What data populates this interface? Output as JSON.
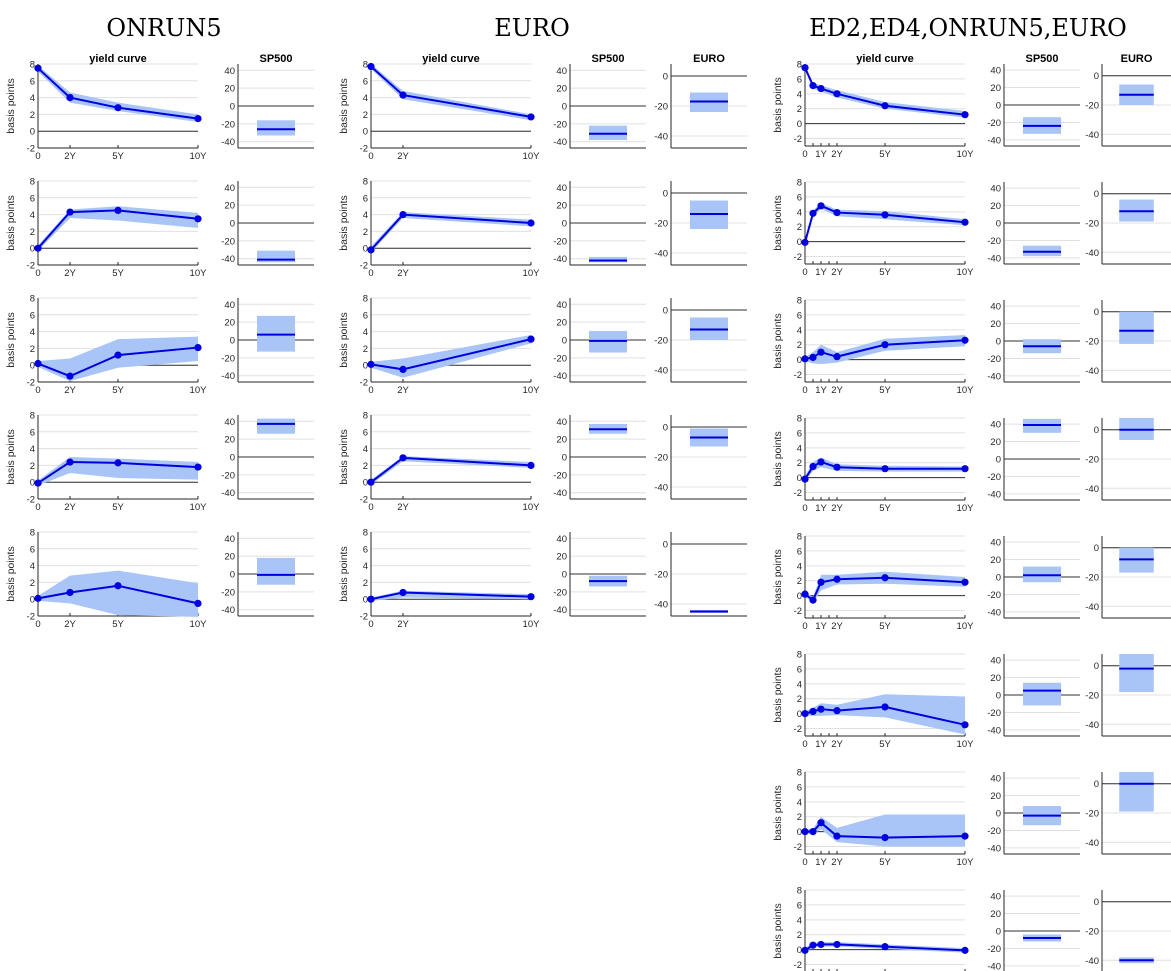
{
  "figure": {
    "group_titles": [
      "ONRUN5",
      "EURO",
      "ED2,ED4,ONRUN5,EURO"
    ]
  },
  "colors": {
    "line": "#0000e0",
    "band": "#a9c4f6",
    "grid": "#e0e0e0",
    "zero": "#303030",
    "axis": "#262626"
  },
  "chart_data": [
    {
      "group": "ONRUN5",
      "rows": [
        {
          "yield_curve": {
            "title": "yield curve",
            "ylabel": "basis points",
            "x": [
              0,
              2,
              5,
              10
            ],
            "y": [
              7.5,
              4.0,
              2.8,
              1.5
            ],
            "band_low": [
              7.1,
              3.4,
              2.4,
              1.1
            ],
            "band_high": [
              7.8,
              4.6,
              3.4,
              2.0
            ]
          },
          "boxes": [
            {
              "title": "SP500",
              "value": -26,
              "low": -33,
              "high": -16
            }
          ]
        },
        {
          "yield_curve": {
            "ylabel": "basis points",
            "x": [
              0,
              2,
              5,
              10
            ],
            "y": [
              0.0,
              4.3,
              4.5,
              3.5
            ],
            "band_low": [
              -0.3,
              3.6,
              3.3,
              2.4
            ],
            "band_high": [
              0.3,
              4.6,
              5.0,
              4.2
            ]
          },
          "boxes": [
            {
              "value": -41,
              "low": -44,
              "high": -31
            }
          ]
        },
        {
          "yield_curve": {
            "ylabel": "basis points",
            "x": [
              0,
              2,
              5,
              10
            ],
            "y": [
              0.2,
              -1.3,
              1.2,
              2.1
            ],
            "band_low": [
              -0.2,
              -1.9,
              -0.3,
              0.5
            ],
            "band_high": [
              0.5,
              0.8,
              3.1,
              3.4
            ]
          },
          "boxes": [
            {
              "value": 6,
              "low": -13,
              "high": 27
            }
          ]
        },
        {
          "yield_curve": {
            "ylabel": "basis points",
            "x": [
              0,
              2,
              5,
              10
            ],
            "y": [
              -0.1,
              2.4,
              2.3,
              1.8
            ],
            "band_low": [
              -0.4,
              1.1,
              0.5,
              0.3
            ],
            "band_high": [
              0.2,
              3.0,
              2.8,
              2.4
            ]
          },
          "boxes": [
            {
              "value": 37,
              "low": 26,
              "high": 43
            }
          ]
        },
        {
          "yield_curve": {
            "ylabel": "basis points",
            "x": [
              0,
              2,
              5,
              10
            ],
            "y": [
              0.1,
              0.8,
              1.6,
              -0.5
            ],
            "band_low": [
              -0.2,
              -0.5,
              -1.9,
              -2.1
            ],
            "band_high": [
              0.4,
              2.8,
              3.4,
              1.9
            ]
          },
          "boxes": [
            {
              "value": -1,
              "low": -12,
              "high": 18
            }
          ]
        }
      ]
    },
    {
      "group": "EURO",
      "rows": [
        {
          "yield_curve": {
            "title": "yield curve",
            "ylabel": "basis points",
            "x": [
              0,
              2,
              10
            ],
            "y": [
              7.7,
              4.3,
              1.7
            ],
            "band_low": [
              7.4,
              3.8,
              1.3
            ],
            "band_high": [
              8.0,
              4.8,
              2.0
            ]
          },
          "boxes": [
            {
              "title": "SP500",
              "value": -31,
              "low": -38,
              "high": -22
            },
            {
              "title": "EURO",
              "value": -17,
              "low": -24,
              "high": -11
            }
          ]
        },
        {
          "yield_curve": {
            "ylabel": "basis points",
            "x": [
              0,
              2,
              10
            ],
            "y": [
              -0.2,
              4.0,
              3.0
            ],
            "band_low": [
              -0.5,
              3.6,
              2.6
            ],
            "band_high": [
              0.2,
              4.3,
              3.4
            ]
          },
          "boxes": [
            {
              "value": -42,
              "low": -44,
              "high": -38
            },
            {
              "value": -14,
              "low": -24,
              "high": -5
            }
          ]
        },
        {
          "yield_curve": {
            "ylabel": "basis points",
            "x": [
              0,
              2,
              10
            ],
            "y": [
              0.1,
              -0.5,
              3.1
            ],
            "band_low": [
              -0.3,
              -1.5,
              2.6
            ],
            "band_high": [
              0.4,
              0.8,
              3.6
            ]
          },
          "boxes": [
            {
              "value": -1,
              "low": -14,
              "high": 10
            },
            {
              "value": -13,
              "low": -20,
              "high": -5
            }
          ]
        },
        {
          "yield_curve": {
            "ylabel": "basis points",
            "x": [
              0,
              2,
              10
            ],
            "y": [
              0.0,
              2.9,
              2.0
            ],
            "band_low": [
              -0.3,
              2.5,
              1.7
            ],
            "band_high": [
              0.3,
              3.1,
              2.4
            ]
          },
          "boxes": [
            {
              "value": 31,
              "low": 26,
              "high": 37
            },
            {
              "value": -7,
              "low": -13,
              "high": -1
            }
          ]
        },
        {
          "yield_curve": {
            "ylabel": "basis points",
            "x": [
              0,
              2,
              10
            ],
            "y": [
              0.0,
              0.8,
              0.3
            ],
            "band_low": [
              -0.2,
              0.2,
              0.0
            ],
            "band_high": [
              0.2,
              1.0,
              0.6
            ]
          },
          "boxes": [
            {
              "value": -8,
              "low": -14,
              "high": -2
            },
            {
              "value": -45,
              "low": -46,
              "high": -44
            }
          ]
        }
      ]
    },
    {
      "group": "ED2,ED4,ONRUN5,EURO",
      "rows": [
        {
          "yield_curve": {
            "title": "yield curve",
            "ylabel": "basis points",
            "x": [
              0,
              0.5,
              1,
              2,
              5,
              10
            ],
            "y": [
              7.5,
              5.1,
              4.7,
              4.0,
              2.4,
              1.2
            ],
            "band_low": [
              7.2,
              4.7,
              4.3,
              3.5,
              2.0,
              0.8
            ],
            "band_high": [
              7.8,
              5.5,
              5.1,
              4.5,
              2.9,
              1.7
            ]
          },
          "boxes": [
            {
              "title": "SP500",
              "value": -24,
              "low": -33,
              "high": -14
            },
            {
              "title": "EURO",
              "value": -13,
              "low": -20,
              "high": -6
            }
          ]
        },
        {
          "yield_curve": {
            "ylabel": "basis points",
            "x": [
              0,
              0.5,
              1,
              2,
              5,
              10
            ],
            "y": [
              -0.1,
              3.8,
              4.8,
              3.9,
              3.6,
              2.6
            ],
            "band_low": [
              -0.4,
              3.4,
              4.4,
              3.4,
              3.0,
              2.2
            ],
            "band_high": [
              0.2,
              4.2,
              5.2,
              4.3,
              4.1,
              3.0
            ]
          },
          "boxes": [
            {
              "value": -33,
              "low": -38,
              "high": -26
            },
            {
              "value": -12,
              "low": -19,
              "high": -4
            }
          ]
        },
        {
          "yield_curve": {
            "ylabel": "basis points",
            "x": [
              0,
              0.5,
              1,
              2,
              5,
              10
            ],
            "y": [
              0.1,
              0.3,
              1.0,
              0.4,
              2.0,
              2.6
            ],
            "band_low": [
              -0.2,
              -0.5,
              -0.6,
              -0.4,
              1.2,
              1.8
            ],
            "band_high": [
              0.3,
              1.0,
              2.0,
              1.0,
              2.8,
              3.3
            ]
          },
          "boxes": [
            {
              "value": -6,
              "low": -14,
              "high": 2
            },
            {
              "value": -13,
              "low": -22,
              "high": 0
            }
          ]
        },
        {
          "yield_curve": {
            "ylabel": "basis points",
            "x": [
              0,
              0.5,
              1,
              2,
              5,
              10
            ],
            "y": [
              -0.2,
              1.5,
              2.1,
              1.4,
              1.2,
              1.2
            ],
            "band_low": [
              -0.5,
              0.9,
              1.4,
              0.9,
              0.8,
              0.8
            ],
            "band_high": [
              0.2,
              2.1,
              2.7,
              1.8,
              1.6,
              1.5
            ]
          },
          "boxes": [
            {
              "value": 39,
              "low": 30,
              "high": 46
            },
            {
              "value": 0,
              "low": -7,
              "high": 8
            }
          ]
        },
        {
          "yield_curve": {
            "ylabel": "basis points",
            "x": [
              0,
              0.5,
              1,
              2,
              5,
              10
            ],
            "y": [
              0.2,
              -0.6,
              1.8,
              2.2,
              2.4,
              1.8
            ],
            "band_low": [
              -0.1,
              -1.0,
              0.7,
              1.5,
              1.6,
              1.2
            ],
            "band_high": [
              0.5,
              -0.2,
              2.8,
              2.8,
              3.2,
              2.5
            ]
          },
          "boxes": [
            {
              "value": 2,
              "low": -6,
              "high": 12
            },
            {
              "value": -8,
              "low": -17,
              "high": 0
            }
          ]
        },
        {
          "yield_curve": {
            "ylabel": "basis points",
            "x": [
              0,
              0.5,
              1,
              2,
              5,
              10
            ],
            "y": [
              0.0,
              0.3,
              0.6,
              0.4,
              0.9,
              -1.5
            ],
            "band_low": [
              -0.3,
              -0.3,
              -0.3,
              -0.2,
              -0.5,
              -2.8
            ],
            "band_high": [
              0.3,
              0.8,
              1.4,
              1.2,
              2.6,
              2.3
            ]
          },
          "boxes": [
            {
              "value": 5,
              "low": -12,
              "high": 14
            },
            {
              "value": -2,
              "low": -18,
              "high": 8
            }
          ]
        },
        {
          "yield_curve": {
            "ylabel": "basis points",
            "x": [
              0,
              0.5,
              1,
              2,
              5,
              10
            ],
            "y": [
              0.0,
              0.0,
              1.2,
              -0.6,
              -0.8,
              -0.6
            ],
            "band_low": [
              -0.3,
              -0.3,
              0.3,
              -1.4,
              -2.0,
              -2.0
            ],
            "band_high": [
              0.3,
              0.4,
              2.0,
              0.5,
              2.3,
              2.3
            ]
          },
          "boxes": [
            {
              "value": -3,
              "low": -14,
              "high": 8
            },
            {
              "value": 0,
              "low": -19,
              "high": 8
            }
          ]
        },
        {
          "yield_curve": {
            "ylabel": "basis points",
            "x": [
              0,
              0.5,
              1,
              2,
              5,
              10
            ],
            "y": [
              -0.1,
              0.6,
              0.7,
              0.7,
              0.4,
              -0.1
            ],
            "band_low": [
              -0.3,
              0.3,
              0.4,
              0.4,
              0.1,
              -0.4
            ],
            "band_high": [
              0.2,
              0.9,
              1.0,
              1.0,
              0.7,
              0.2
            ]
          },
          "boxes": [
            {
              "value": -8,
              "low": -12,
              "high": -4
            },
            {
              "value": -40,
              "low": -42,
              "high": -38
            }
          ]
        }
      ]
    }
  ]
}
